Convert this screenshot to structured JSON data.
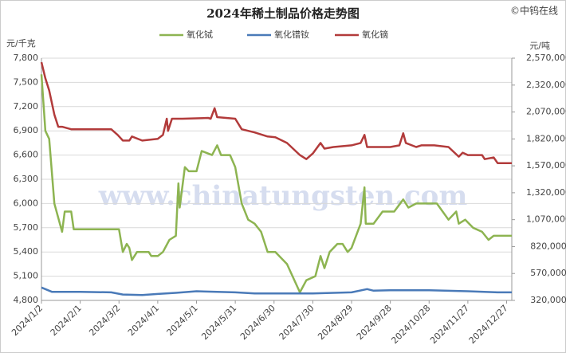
{
  "chart_data": {
    "type": "line",
    "title": "2024年稀土制品价格走势图",
    "source": "©中钨在线",
    "watermark": "www.chinatungsten.com",
    "ylabel": "元/千克",
    "y2label": "元/吨",
    "grid": true,
    "legend": "top",
    "xlim": [
      "2024-01-02",
      "2024-12-31"
    ],
    "xticks": [
      {
        "value": "2024-01-02",
        "label": "2024/1/2"
      },
      {
        "value": "2024-02-01",
        "label": "2024/2/1"
      },
      {
        "value": "2024-03-02",
        "label": "2024/3/2"
      },
      {
        "value": "2024-04-01",
        "label": "2024/4/1"
      },
      {
        "value": "2024-05-01",
        "label": "2024/5/1"
      },
      {
        "value": "2024-05-31",
        "label": "2024/5/31"
      },
      {
        "value": "2024-06-30",
        "label": "2024/6/30"
      },
      {
        "value": "2024-07-30",
        "label": "2024/7/30"
      },
      {
        "value": "2024-08-29",
        "label": "2024/8/29"
      },
      {
        "value": "2024-09-28",
        "label": "2024/9/28"
      },
      {
        "value": "2024-10-28",
        "label": "2024/10/28"
      },
      {
        "value": "2024-11-27",
        "label": "2024/11/27"
      },
      {
        "value": "2024-12-27",
        "label": "2024/12/27"
      }
    ],
    "ylim": [
      4800,
      7800
    ],
    "yticks": [
      {
        "value": 4800,
        "label": "4,800"
      },
      {
        "value": 5100,
        "label": "5,100"
      },
      {
        "value": 5400,
        "label": "5,400"
      },
      {
        "value": 5700,
        "label": "5,700"
      },
      {
        "value": 6000,
        "label": "6,000"
      },
      {
        "value": 6300,
        "label": "6,300"
      },
      {
        "value": 6600,
        "label": "6,600"
      },
      {
        "value": 6900,
        "label": "6,900"
      },
      {
        "value": 7200,
        "label": "7,200"
      },
      {
        "value": 7500,
        "label": "7,500"
      },
      {
        "value": 7800,
        "label": "7,800"
      }
    ],
    "y2lim": [
      320000,
      2570000
    ],
    "y2ticks": [
      {
        "value": 320000,
        "label": "320,000"
      },
      {
        "value": 570000,
        "label": "570,000"
      },
      {
        "value": 820000,
        "label": "820,000"
      },
      {
        "value": 1070000,
        "label": "1,070,000"
      },
      {
        "value": 1320000,
        "label": "1,320,000"
      },
      {
        "value": 1570000,
        "label": "1,570,000"
      },
      {
        "value": 1820000,
        "label": "1,820,000"
      },
      {
        "value": 2070000,
        "label": "2,070,000"
      },
      {
        "value": 2320000,
        "label": "2,320,000"
      },
      {
        "value": 2570000,
        "label": "2,570,000"
      }
    ],
    "series": [
      {
        "name": "氧化铽",
        "color": "#8db451",
        "axis": "y",
        "x": [
          "2024-01-02",
          "2024-01-05",
          "2024-01-08",
          "2024-01-12",
          "2024-01-18",
          "2024-01-20",
          "2024-01-25",
          "2024-01-27",
          "2024-03-02",
          "2024-03-05",
          "2024-03-08",
          "2024-03-10",
          "2024-03-12",
          "2024-03-16",
          "2024-03-25",
          "2024-03-27",
          "2024-04-01",
          "2024-04-05",
          "2024-04-10",
          "2024-04-15",
          "2024-04-17",
          "2024-04-18",
          "2024-04-22",
          "2024-04-25",
          "2024-05-01",
          "2024-05-05",
          "2024-05-13",
          "2024-05-17",
          "2024-05-20",
          "2024-05-27",
          "2024-05-31",
          "2024-06-05",
          "2024-06-10",
          "2024-06-15",
          "2024-06-20",
          "2024-06-25",
          "2024-07-01",
          "2024-07-10",
          "2024-07-20",
          "2024-07-25",
          "2024-08-01",
          "2024-08-05",
          "2024-08-08",
          "2024-08-12",
          "2024-08-18",
          "2024-08-22",
          "2024-08-26",
          "2024-08-29",
          "2024-09-05",
          "2024-09-08",
          "2024-09-09",
          "2024-09-15",
          "2024-09-22",
          "2024-10-01",
          "2024-10-08",
          "2024-10-12",
          "2024-10-18",
          "2024-10-28",
          "2024-11-03",
          "2024-11-12",
          "2024-11-18",
          "2024-11-20",
          "2024-11-25",
          "2024-12-01",
          "2024-12-08",
          "2024-12-13",
          "2024-12-17",
          "2024-12-31"
        ],
        "values": [
          7600,
          6900,
          6800,
          6000,
          5650,
          5900,
          5900,
          5680,
          5680,
          5400,
          5500,
          5450,
          5300,
          5400,
          5400,
          5350,
          5350,
          5400,
          5550,
          5600,
          6250,
          5950,
          6450,
          6400,
          6400,
          6650,
          6600,
          6720,
          6600,
          6600,
          6450,
          6000,
          5800,
          5750,
          5650,
          5400,
          5400,
          5250,
          4900,
          5050,
          5100,
          5350,
          5200,
          5400,
          5500,
          5500,
          5400,
          5450,
          5750,
          6200,
          5750,
          5750,
          5900,
          5900,
          6050,
          5950,
          6000,
          6000,
          6000,
          5800,
          5900,
          5750,
          5800,
          5700,
          5650,
          5550,
          5600,
          5600
        ]
      },
      {
        "name": "氧化镨钕",
        "color": "#4a7ab8",
        "axis": "y2",
        "x": [
          "2024-01-02",
          "2024-01-10",
          "2024-02-01",
          "2024-02-25",
          "2024-03-05",
          "2024-03-20",
          "2024-04-01",
          "2024-04-15",
          "2024-05-01",
          "2024-05-31",
          "2024-06-15",
          "2024-07-01",
          "2024-07-30",
          "2024-08-29",
          "2024-09-10",
          "2024-09-15",
          "2024-09-28",
          "2024-10-28",
          "2024-11-27",
          "2024-12-20",
          "2024-12-31"
        ],
        "values": [
          440000,
          400000,
          400000,
          395000,
          375000,
          370000,
          380000,
          390000,
          405000,
          395000,
          385000,
          385000,
          385000,
          395000,
          425000,
          410000,
          415000,
          415000,
          405000,
          395000,
          395000
        ]
      },
      {
        "name": "氧化镝",
        "color": "#b23b3b",
        "axis": "y2",
        "x": [
          "2024-01-02",
          "2024-01-05",
          "2024-01-08",
          "2024-01-12",
          "2024-01-15",
          "2024-01-18",
          "2024-01-25",
          "2024-02-25",
          "2024-03-01",
          "2024-03-05",
          "2024-03-10",
          "2024-03-12",
          "2024-03-20",
          "2024-04-01",
          "2024-04-05",
          "2024-04-08",
          "2024-04-09",
          "2024-04-12",
          "2024-04-20",
          "2024-05-10",
          "2024-05-12",
          "2024-05-15",
          "2024-05-17",
          "2024-05-31",
          "2024-06-05",
          "2024-06-15",
          "2024-06-25",
          "2024-07-01",
          "2024-07-10",
          "2024-07-20",
          "2024-07-25",
          "2024-07-30",
          "2024-08-05",
          "2024-08-08",
          "2024-08-15",
          "2024-08-29",
          "2024-09-05",
          "2024-09-08",
          "2024-09-10",
          "2024-09-28",
          "2024-10-05",
          "2024-10-08",
          "2024-10-10",
          "2024-10-18",
          "2024-10-22",
          "2024-11-01",
          "2024-11-12",
          "2024-11-20",
          "2024-11-23",
          "2024-11-27",
          "2024-12-08",
          "2024-12-10",
          "2024-12-17",
          "2024-12-20",
          "2024-12-31"
        ],
        "values": [
          2532500,
          2382500,
          2270000,
          2045000,
          1932500,
          1932500,
          1910000,
          1910000,
          1857500,
          1805000,
          1805000,
          1842500,
          1805000,
          1820000,
          1857500,
          2007500,
          1895000,
          2007500,
          2007500,
          2015000,
          2007500,
          2105000,
          2022500,
          2007500,
          1910000,
          1880000,
          1842500,
          1835000,
          1782500,
          1670000,
          1632500,
          1685000,
          1782500,
          1730000,
          1745000,
          1760000,
          1782500,
          1857500,
          1745000,
          1745000,
          1760000,
          1872500,
          1782500,
          1745000,
          1760000,
          1760000,
          1745000,
          1655000,
          1692500,
          1670000,
          1670000,
          1632500,
          1647500,
          1595000,
          1595000
        ]
      }
    ]
  }
}
